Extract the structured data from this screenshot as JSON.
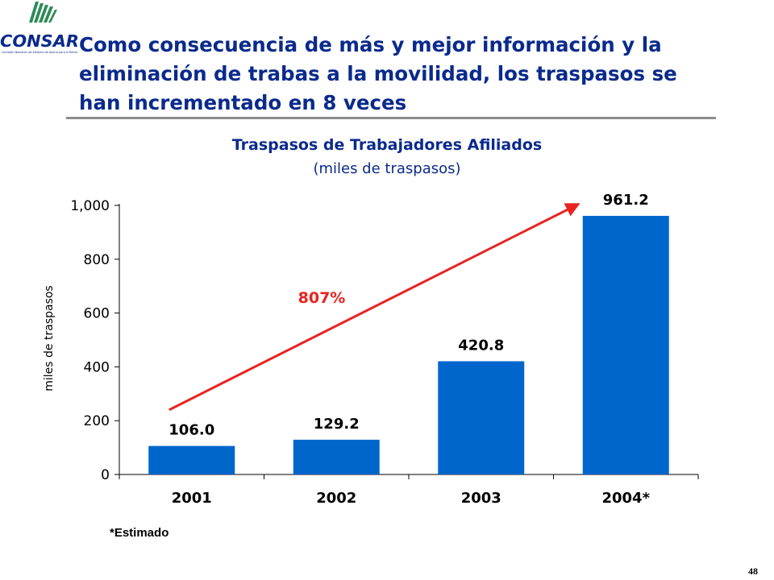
{
  "slide": {
    "heading": "Como consecuencia de más y mejor información y la eliminación de trabas a la movilidad, los traspasos se han incrementado en 8 veces",
    "logo_text": "CONSAR",
    "logo_subtext": "Comisión Nacional del Sistema de Ahorro para el Retiro",
    "footnote": "*Estimado",
    "page_number": "48"
  },
  "colors": {
    "bar": "#0066cc",
    "arrow": "#e8231f",
    "heading": "#0a2a8c"
  },
  "chart_data": {
    "type": "bar",
    "title": "Traspasos de Trabajadores Afiliados",
    "subtitle": "(miles de traspasos)",
    "ylabel": "miles de traspasos",
    "xlabel": "",
    "categories": [
      "2001",
      "2002",
      "2003",
      "2004*"
    ],
    "values": [
      106.0,
      129.2,
      420.8,
      961.2
    ],
    "data_labels": [
      "106.0",
      "129.2",
      "420.8",
      "961.2"
    ],
    "ylim": [
      0,
      1000
    ],
    "yticks": [
      0,
      200,
      400,
      600,
      800,
      1000
    ],
    "ytick_labels": [
      "0",
      "200",
      "400",
      "600",
      "800",
      "1,000"
    ],
    "grid": false,
    "legend": "none",
    "annotation": {
      "text": "807%",
      "arrow_from": {
        "category": "2001",
        "value": 240
      },
      "arrow_to": {
        "category": "2004*",
        "value": 1000
      }
    }
  }
}
